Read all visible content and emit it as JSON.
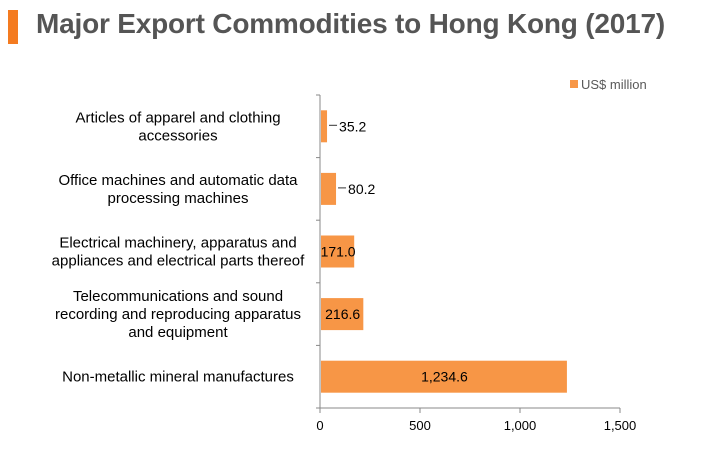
{
  "title": "Major Export Commodities to Hong Kong (2017)",
  "colors": {
    "accent": "#f47b20",
    "bar": "#f79646",
    "axis": "#888888"
  },
  "chart_data": {
    "type": "bar",
    "orientation": "horizontal",
    "categories": [
      [
        "Articles of apparel and clothing",
        "accessories"
      ],
      [
        "Office machines and automatic data",
        "processing machines"
      ],
      [
        "Electrical machinery, apparatus and",
        "appliances and electrical parts thereof"
      ],
      [
        "Telecommunications and sound",
        "recording and reproducing apparatus",
        "and equipment"
      ],
      [
        "Non-metallic mineral manufactures"
      ]
    ],
    "series": [
      {
        "name": "US$ million",
        "values": [
          35.2,
          80.2,
          171.0,
          216.6,
          1234.6
        ]
      }
    ],
    "data_labels": [
      "35.2",
      "80.2",
      "171.0",
      "216.6",
      "1,234.6"
    ],
    "xlim": [
      0,
      1500
    ],
    "xticks": [
      0,
      500,
      1000,
      1500
    ],
    "xtick_labels": [
      "0",
      "500",
      "1,000",
      "1,500"
    ],
    "legend_position": "top-right",
    "grid": false
  }
}
